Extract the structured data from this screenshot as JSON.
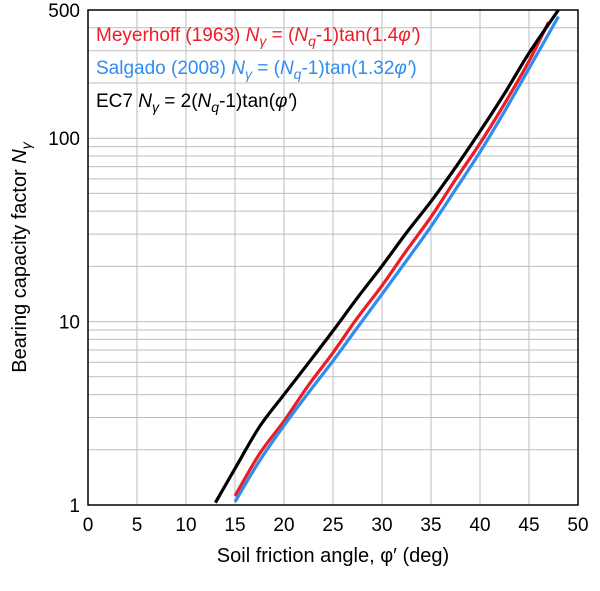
{
  "chart_data": {
    "type": "line",
    "xlabel": "Soil friction angle, φ′ (deg)",
    "ylabel": "Bearing capacity factor",
    "ylabel_symbol": "N",
    "ylabel_subscript": "γ",
    "xlim": [
      0,
      50
    ],
    "ylim": [
      1,
      500
    ],
    "yscale": "log",
    "grid": true,
    "legend_placement": "top-left",
    "x_ticks": [
      "0",
      "5",
      "10",
      "15",
      "20",
      "25",
      "30",
      "35",
      "40",
      "45",
      "50"
    ],
    "y_ticks": [
      {
        "value": 1,
        "label": "1"
      },
      {
        "value": 10,
        "label": "10"
      },
      {
        "value": 100,
        "label": "100"
      },
      {
        "value": 500,
        "label": "500"
      }
    ],
    "series": [
      {
        "legend": [
          {
            "t": "Meyerhoff (1963) "
          },
          {
            "t": "N",
            "i": true
          },
          {
            "t": "γ",
            "i": true,
            "sub": true
          },
          {
            "t": " = ("
          },
          {
            "t": "N",
            "i": true
          },
          {
            "t": "q",
            "i": true,
            "sub": true
          },
          {
            "t": "-1)tan(1.4"
          },
          {
            "t": "φ′",
            "i": true
          },
          {
            "t": ")"
          }
        ],
        "color": "#ee1c25",
        "x": [
          15,
          17.5,
          20,
          22.5,
          25,
          27.5,
          30,
          32.5,
          35,
          37.5,
          40,
          42.5,
          45,
          47
        ],
        "values": [
          1.12,
          1.9,
          2.87,
          4.5,
          6.77,
          10.5,
          15.7,
          24.4,
          37.2,
          59.5,
          93.7,
          154,
          263,
          430
        ]
      },
      {
        "legend": [
          {
            "t": "Salgado (2008) "
          },
          {
            "t": "N",
            "i": true
          },
          {
            "t": "γ",
            "i": true,
            "sub": true
          },
          {
            "t": " = ("
          },
          {
            "t": "N",
            "i": true
          },
          {
            "t": "q",
            "i": true,
            "sub": true
          },
          {
            "t": "-1)tan(1.32"
          },
          {
            "t": "φ′",
            "i": true
          },
          {
            "t": ")"
          }
        ],
        "color": "#2e8df0",
        "x": [
          15,
          17.5,
          20,
          22.5,
          25,
          27.5,
          30,
          32.5,
          35,
          37.5,
          40,
          42.5,
          45,
          48
        ],
        "values": [
          1.04,
          1.74,
          2.71,
          4.1,
          6.1,
          9.3,
          14.1,
          21.5,
          33,
          52.5,
          84,
          140,
          240,
          460
        ]
      },
      {
        "legend": [
          {
            "t": "EC7 "
          },
          {
            "t": "N",
            "i": true
          },
          {
            "t": "γ",
            "i": true,
            "sub": true
          },
          {
            "t": " = 2("
          },
          {
            "t": "N",
            "i": true
          },
          {
            "t": "q",
            "i": true,
            "sub": true
          },
          {
            "t": "-1)tan("
          },
          {
            "t": "φ′",
            "i": true
          },
          {
            "t": ")"
          }
        ],
        "color": "#000000",
        "x": [
          13,
          15,
          17.5,
          20,
          22.5,
          25,
          27.5,
          30,
          32.5,
          35,
          37.5,
          40,
          42.5,
          45,
          48
        ],
        "values": [
          1.03,
          1.58,
          2.67,
          4.0,
          5.95,
          8.9,
          13.5,
          20.1,
          30.5,
          45.2,
          69.3,
          109,
          175,
          291,
          500
        ]
      }
    ]
  }
}
